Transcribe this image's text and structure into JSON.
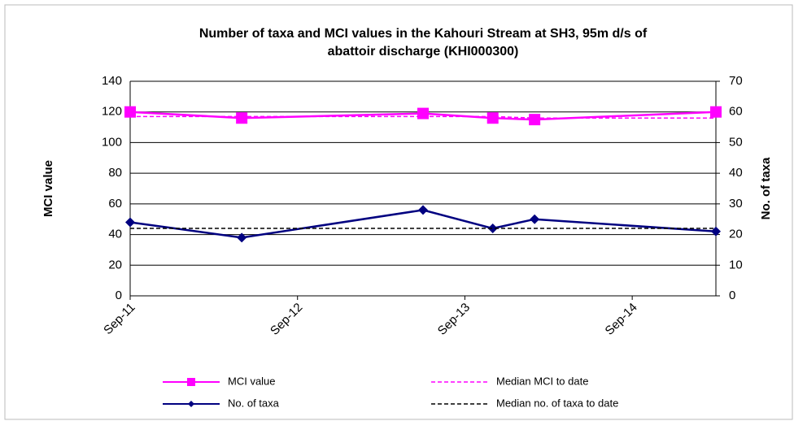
{
  "chart_data": {
    "type": "line",
    "title": [
      "Number of taxa and MCI values in the Kahouri Stream at SH3, 95m d/s of",
      "abattoir discharge (KHI000300)"
    ],
    "y_label": "MCI value",
    "y2_label": "No. of taxa",
    "x": [
      "2011-09",
      "2012-05",
      "2013-06",
      "2013-11",
      "2014-02",
      "2015-03"
    ],
    "xlim": [
      "2011-09",
      "2015-03"
    ],
    "xticks": [
      {
        "value": "2011-09",
        "label": "Sep-11"
      },
      {
        "value": "2012-09",
        "label": "Sep-12"
      },
      {
        "value": "2013-09",
        "label": "Sep-13"
      },
      {
        "value": "2014-09",
        "label": "Sep-14"
      }
    ],
    "ylim": [
      0,
      140
    ],
    "yticks": [
      0,
      20,
      40,
      60,
      80,
      100,
      120,
      140
    ],
    "y2lim": [
      0,
      70
    ],
    "y2ticks": [
      0,
      10,
      20,
      30,
      40,
      50,
      60,
      70
    ],
    "grid": true,
    "series": [
      {
        "name": "MCI value",
        "color": "#ff00ff",
        "marker": "square",
        "values": [
          120,
          116,
          119,
          116,
          115,
          120
        ]
      },
      {
        "name": "Median MCI to date",
        "color": "#ff00ff",
        "dashed": true,
        "values": [
          117,
          117,
          117,
          117,
          116,
          116
        ]
      },
      {
        "name": "No. of taxa",
        "color": "#000080",
        "marker": "diamond",
        "axis": "y2",
        "values": [
          24,
          19,
          28,
          22,
          25,
          21
        ]
      },
      {
        "name": "Median no. of taxa to date",
        "color": "#000000",
        "dashed": true,
        "axis": "y2",
        "values": [
          22,
          22,
          22,
          22,
          22,
          22
        ]
      }
    ]
  }
}
